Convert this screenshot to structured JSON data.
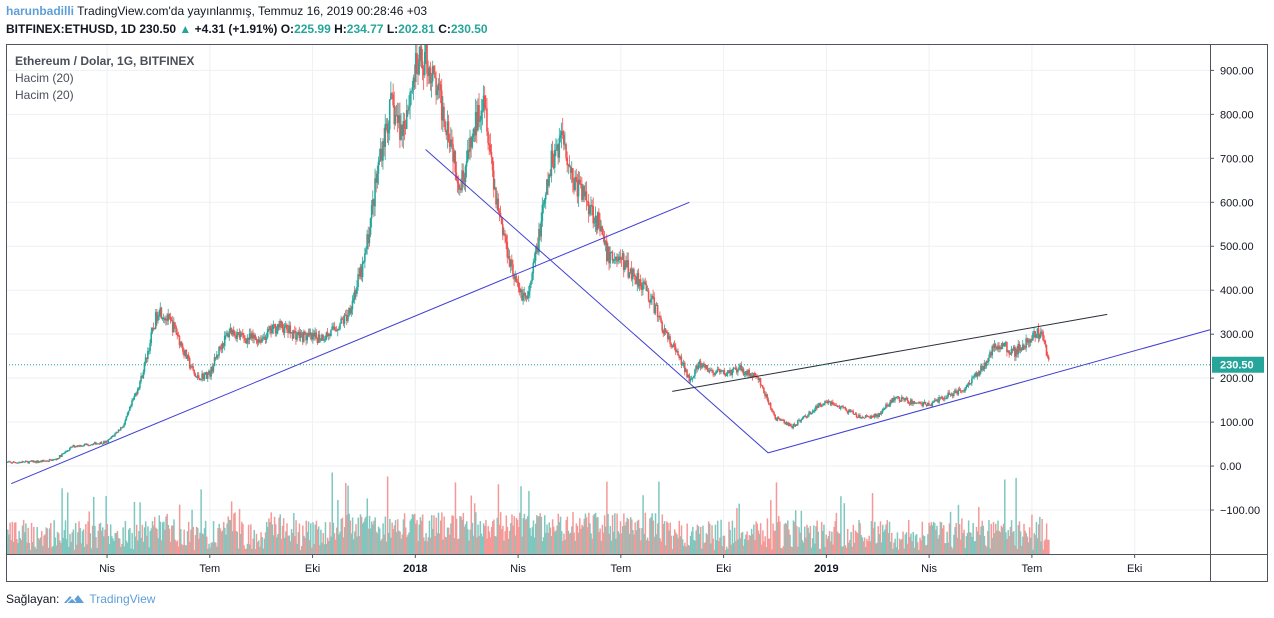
{
  "header": {
    "user": "harunbadilli",
    "published": "TradingView.com'da yayınlanmış, Temmuz 16, 2019 00:28:46 +03",
    "symbol": "BITFINEX:ETHUSD, 1D",
    "last": "230.50",
    "change_arrow": "▲",
    "change": "+4.31 (+1.91%)",
    "open_label": "O:",
    "open": "225.99",
    "high_label": "H:",
    "high": "234.77",
    "low_label": "L:",
    "low": "202.81",
    "close_label": "C:",
    "close": "230.50"
  },
  "legend": {
    "title": "Ethereum / Dolar, 1G, BITFINEX",
    "indicator1": "Hacim (20)",
    "indicator2": "Hacim (20)"
  },
  "footer": {
    "provided_by": "Sağlayan:",
    "brand": "TradingView",
    "logo_icon": "tradingview-logo-icon"
  },
  "colors": {
    "up": "#26a69a",
    "down": "#ef5350",
    "vol_up": "#7fc7bf",
    "vol_down": "#f39a98",
    "trend_blue": "#3f3fd4",
    "trend_dark": "#2a2e39",
    "last_price_line": "#26a69a",
    "grid": "#eef0f3"
  },
  "chart_data": {
    "type": "candlestick",
    "title": "Ethereum / Dolar, 1G, BITFINEX",
    "ylim": [
      -200,
      960
    ],
    "yticks": [
      "900.00",
      "800.00",
      "700.00",
      "600.00",
      "500.00",
      "400.00",
      "300.00",
      "200.00",
      "100.00",
      "0.00",
      "−100.00"
    ],
    "ytick_values": [
      900,
      800,
      700,
      600,
      500,
      400,
      300,
      200,
      100,
      0,
      -100
    ],
    "xticks": [
      {
        "label": "Nis",
        "t": 3.0,
        "bold": false
      },
      {
        "label": "Tem",
        "t": 6.0,
        "bold": false
      },
      {
        "label": "Eki",
        "t": 9.0,
        "bold": false
      },
      {
        "label": "2018",
        "t": 12.0,
        "bold": true
      },
      {
        "label": "Nis",
        "t": 15.0,
        "bold": false
      },
      {
        "label": "Tem",
        "t": 18.0,
        "bold": false
      },
      {
        "label": "Eki",
        "t": 21.0,
        "bold": false
      },
      {
        "label": "2019",
        "t": 24.0,
        "bold": true
      },
      {
        "label": "Nis",
        "t": 27.0,
        "bold": false
      },
      {
        "label": "Tem",
        "t": 30.0,
        "bold": false
      },
      {
        "label": "Eki",
        "t": 33.0,
        "bold": false
      }
    ],
    "last_price": 230.5,
    "last_price_label": "230.50",
    "x_range_months": [
      0.05,
      35.2
    ],
    "price_path_months": [
      0.0,
      1.0,
      1.5,
      2.0,
      2.5,
      3.0,
      3.5,
      4.0,
      4.5,
      5.0,
      5.3,
      5.6,
      6.0,
      6.3,
      6.6,
      7.0,
      7.5,
      8.0,
      8.5,
      9.0,
      9.5,
      10.0,
      10.5,
      11.0,
      11.3,
      11.6,
      12.0,
      12.3,
      12.6,
      13.0,
      13.3,
      13.6,
      14.0,
      14.3,
      14.6,
      15.0,
      15.3,
      15.6,
      16.0,
      16.3,
      16.6,
      17.0,
      17.3,
      17.6,
      18.0,
      18.3,
      18.6,
      19.0,
      19.3,
      19.6,
      20.0,
      20.3,
      20.6,
      21.0,
      21.5,
      22.0,
      22.5,
      23.0,
      23.5,
      24.0,
      24.5,
      25.0,
      25.5,
      26.0,
      26.5,
      27.0,
      27.5,
      28.0,
      28.5,
      29.0,
      29.5,
      30.0,
      30.3,
      30.5
    ],
    "price_path_values": [
      8,
      10,
      15,
      45,
      50,
      55,
      95,
      200,
      360,
      310,
      250,
      200,
      210,
      270,
      310,
      290,
      290,
      320,
      300,
      290,
      300,
      340,
      460,
      720,
      820,
      760,
      900,
      930,
      860,
      760,
      640,
      720,
      860,
      640,
      520,
      400,
      380,
      520,
      700,
      760,
      650,
      610,
      560,
      480,
      470,
      440,
      420,
      360,
      300,
      260,
      200,
      230,
      215,
      210,
      220,
      200,
      110,
      90,
      120,
      150,
      130,
      110,
      115,
      155,
      145,
      140,
      160,
      175,
      220,
      280,
      260,
      290,
      310,
      230.5
    ],
    "drawings": [
      {
        "name": "trendline-long-up",
        "color": "blue",
        "from": [
          0.2,
          -40
        ],
        "to": [
          20.0,
          600
        ]
      },
      {
        "name": "trendline-down",
        "color": "blue",
        "from": [
          12.3,
          720
        ],
        "to": [
          22.3,
          30
        ]
      },
      {
        "name": "trendline-support",
        "color": "blue",
        "from": [
          22.3,
          30
        ],
        "to": [
          35.2,
          310
        ]
      },
      {
        "name": "trendline-resistance",
        "color": "dark",
        "from": [
          19.5,
          170
        ],
        "to": [
          32.2,
          345
        ]
      }
    ]
  }
}
